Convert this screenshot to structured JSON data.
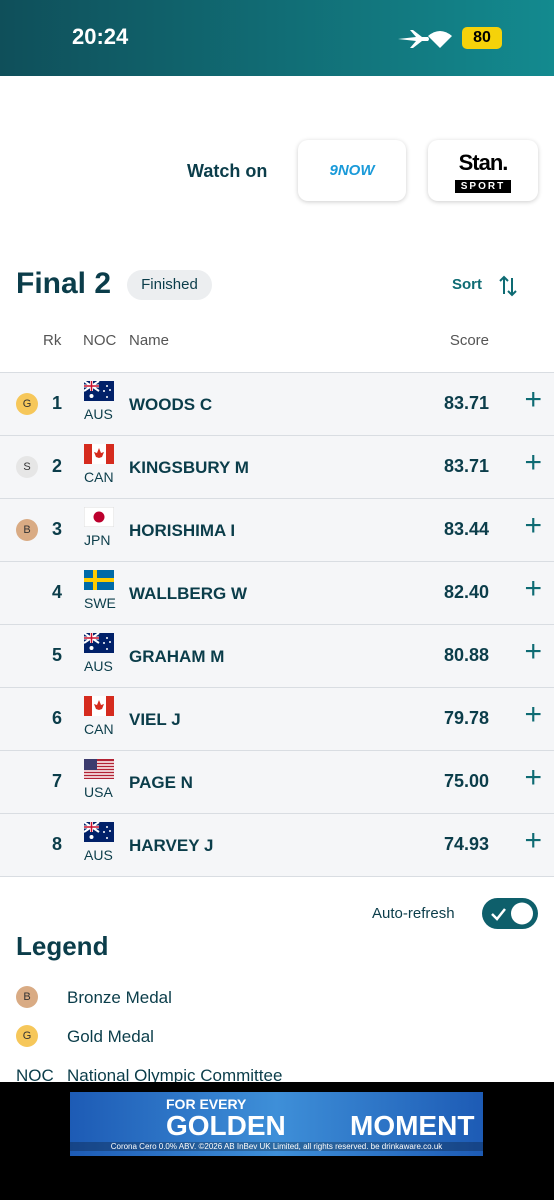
{
  "status_bar": {
    "time": "20:24",
    "battery": "80"
  },
  "watch": {
    "label": "Watch on",
    "providers": [
      "9NOW",
      "Stan.",
      "SPORT"
    ]
  },
  "event": {
    "title": "Final 2",
    "status": "Finished",
    "sort": "Sort"
  },
  "table": {
    "headers": [
      "Rk",
      "NOC",
      "Name",
      "Score"
    ],
    "rows": [
      {
        "medal": "G",
        "rank": "1",
        "noc": "AUS",
        "name": "WOODS C",
        "score": "83.71"
      },
      {
        "medal": "S",
        "rank": "2",
        "noc": "CAN",
        "name": "KINGSBURY M",
        "score": "83.71"
      },
      {
        "medal": "B",
        "rank": "3",
        "noc": "JPN",
        "name": "HORISHIMA I",
        "score": "83.44"
      },
      {
        "rank": "4",
        "noc": "SWE",
        "name": "WALLBERG W",
        "score": "82.40"
      },
      {
        "rank": "5",
        "noc": "AUS",
        "name": "GRAHAM M",
        "score": "80.88"
      },
      {
        "rank": "6",
        "noc": "CAN",
        "name": "VIEL J",
        "score": "79.78"
      },
      {
        "rank": "7",
        "noc": "USA",
        "name": "PAGE N",
        "score": "75.00"
      },
      {
        "rank": "8",
        "noc": "AUS",
        "name": "HARVEY J",
        "score": "74.93"
      }
    ]
  },
  "auto_refresh": "Auto-refresh",
  "legend": {
    "title": "Legend",
    "items": [
      {
        "badge": "B",
        "label": "Bronze Medal"
      },
      {
        "badge": "G",
        "label": "Gold Medal"
      },
      {
        "badge": "NOC",
        "label": "National Olympic Committee"
      }
    ]
  },
  "ad": {
    "line1": "FOR EVERY",
    "line2": "GOLDEN",
    "line3": "MOMENT",
    "fine_print": "Corona Cero 0.0% ABV. ©2026 AB InBev UK Limited, all rights reserved. be drinkaware.co.uk"
  }
}
